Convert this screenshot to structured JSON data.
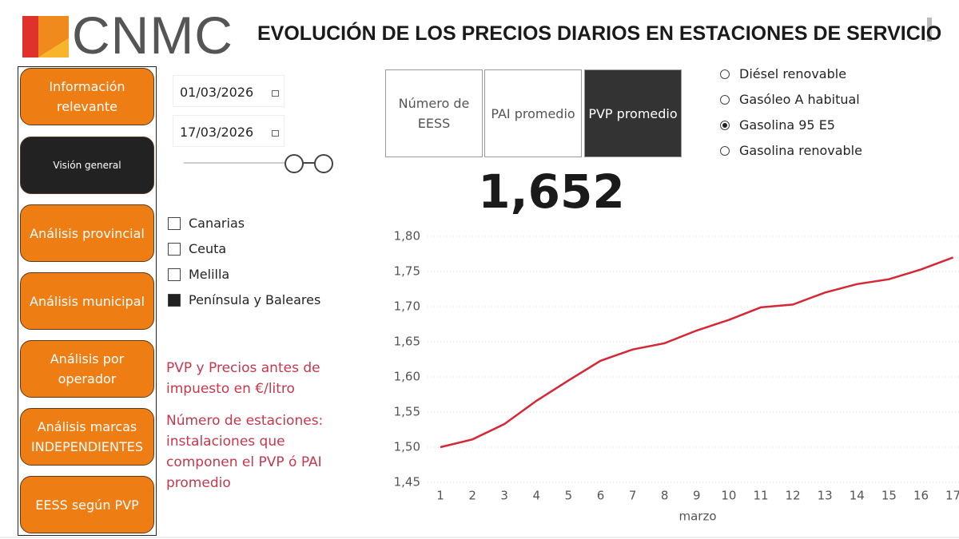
{
  "header": {
    "logo_text": "CNMC",
    "title": "EVOLUCIÓN DE LOS PRECIOS DIARIOS EN ESTACIONES DE SERVICIO"
  },
  "nav": [
    {
      "label": "Información relevante",
      "active": false
    },
    {
      "label": "Visión general",
      "active": true
    },
    {
      "label": "Análisis provincial",
      "active": false
    },
    {
      "label": "Análisis municipal",
      "active": false
    },
    {
      "label": "Análisis por operador",
      "active": false
    },
    {
      "label": "Análisis marcas INDEPENDIENTES",
      "active": false
    },
    {
      "label": "EESS según PVP",
      "active": false
    }
  ],
  "dates": [
    "01/03/2026",
    "17/03/2026"
  ],
  "regions": [
    {
      "label": "Canarias",
      "checked": false
    },
    {
      "label": "Ceuta",
      "checked": false
    },
    {
      "label": "Melilla",
      "checked": false
    },
    {
      "label": "Península y Baleares",
      "checked": true
    }
  ],
  "notes": [
    "PVP y Precios antes de impuesto en €/litro",
    "Número de estaciones: instalaciones que componen el PVP ó PAI promedio"
  ],
  "tabs": [
    {
      "label": "Número de EESS",
      "selected": false
    },
    {
      "label": "PAI promedio",
      "selected": false
    },
    {
      "label": "PVP promedio",
      "selected": true
    }
  ],
  "fuels": [
    {
      "label": "Diésel renovable",
      "selected": false
    },
    {
      "label": "Gasóleo A habitual",
      "selected": false
    },
    {
      "label": "Gasolina 95 E5",
      "selected": true
    },
    {
      "label": "Gasolina renovable",
      "selected": false
    }
  ],
  "kpi": "1,652",
  "chart_data": {
    "type": "line",
    "x_label": "marzo",
    "categories": [
      "1",
      "2",
      "3",
      "4",
      "5",
      "6",
      "7",
      "8",
      "9",
      "10",
      "11",
      "12",
      "13",
      "14",
      "15",
      "16",
      "17"
    ],
    "series": [
      {
        "color": "#d62734",
        "values": [
          1.5,
          1.511,
          1.533,
          1.566,
          1.595,
          1.623,
          1.639,
          1.648,
          1.666,
          1.681,
          1.699,
          1.703,
          1.72,
          1.732,
          1.739,
          1.753,
          1.77
        ]
      }
    ],
    "ylim": [
      1.45,
      1.8
    ],
    "yticks": [
      {
        "value": 1.45,
        "label": "1,45"
      },
      {
        "value": 1.5,
        "label": "1,50"
      },
      {
        "value": 1.55,
        "label": "1,55"
      },
      {
        "value": 1.6,
        "label": "1,60"
      },
      {
        "value": 1.65,
        "label": "1,65"
      },
      {
        "value": 1.7,
        "label": "1,70"
      },
      {
        "value": 1.75,
        "label": "1,75"
      },
      {
        "value": 1.8,
        "label": "1,80"
      }
    ],
    "grid": true
  }
}
